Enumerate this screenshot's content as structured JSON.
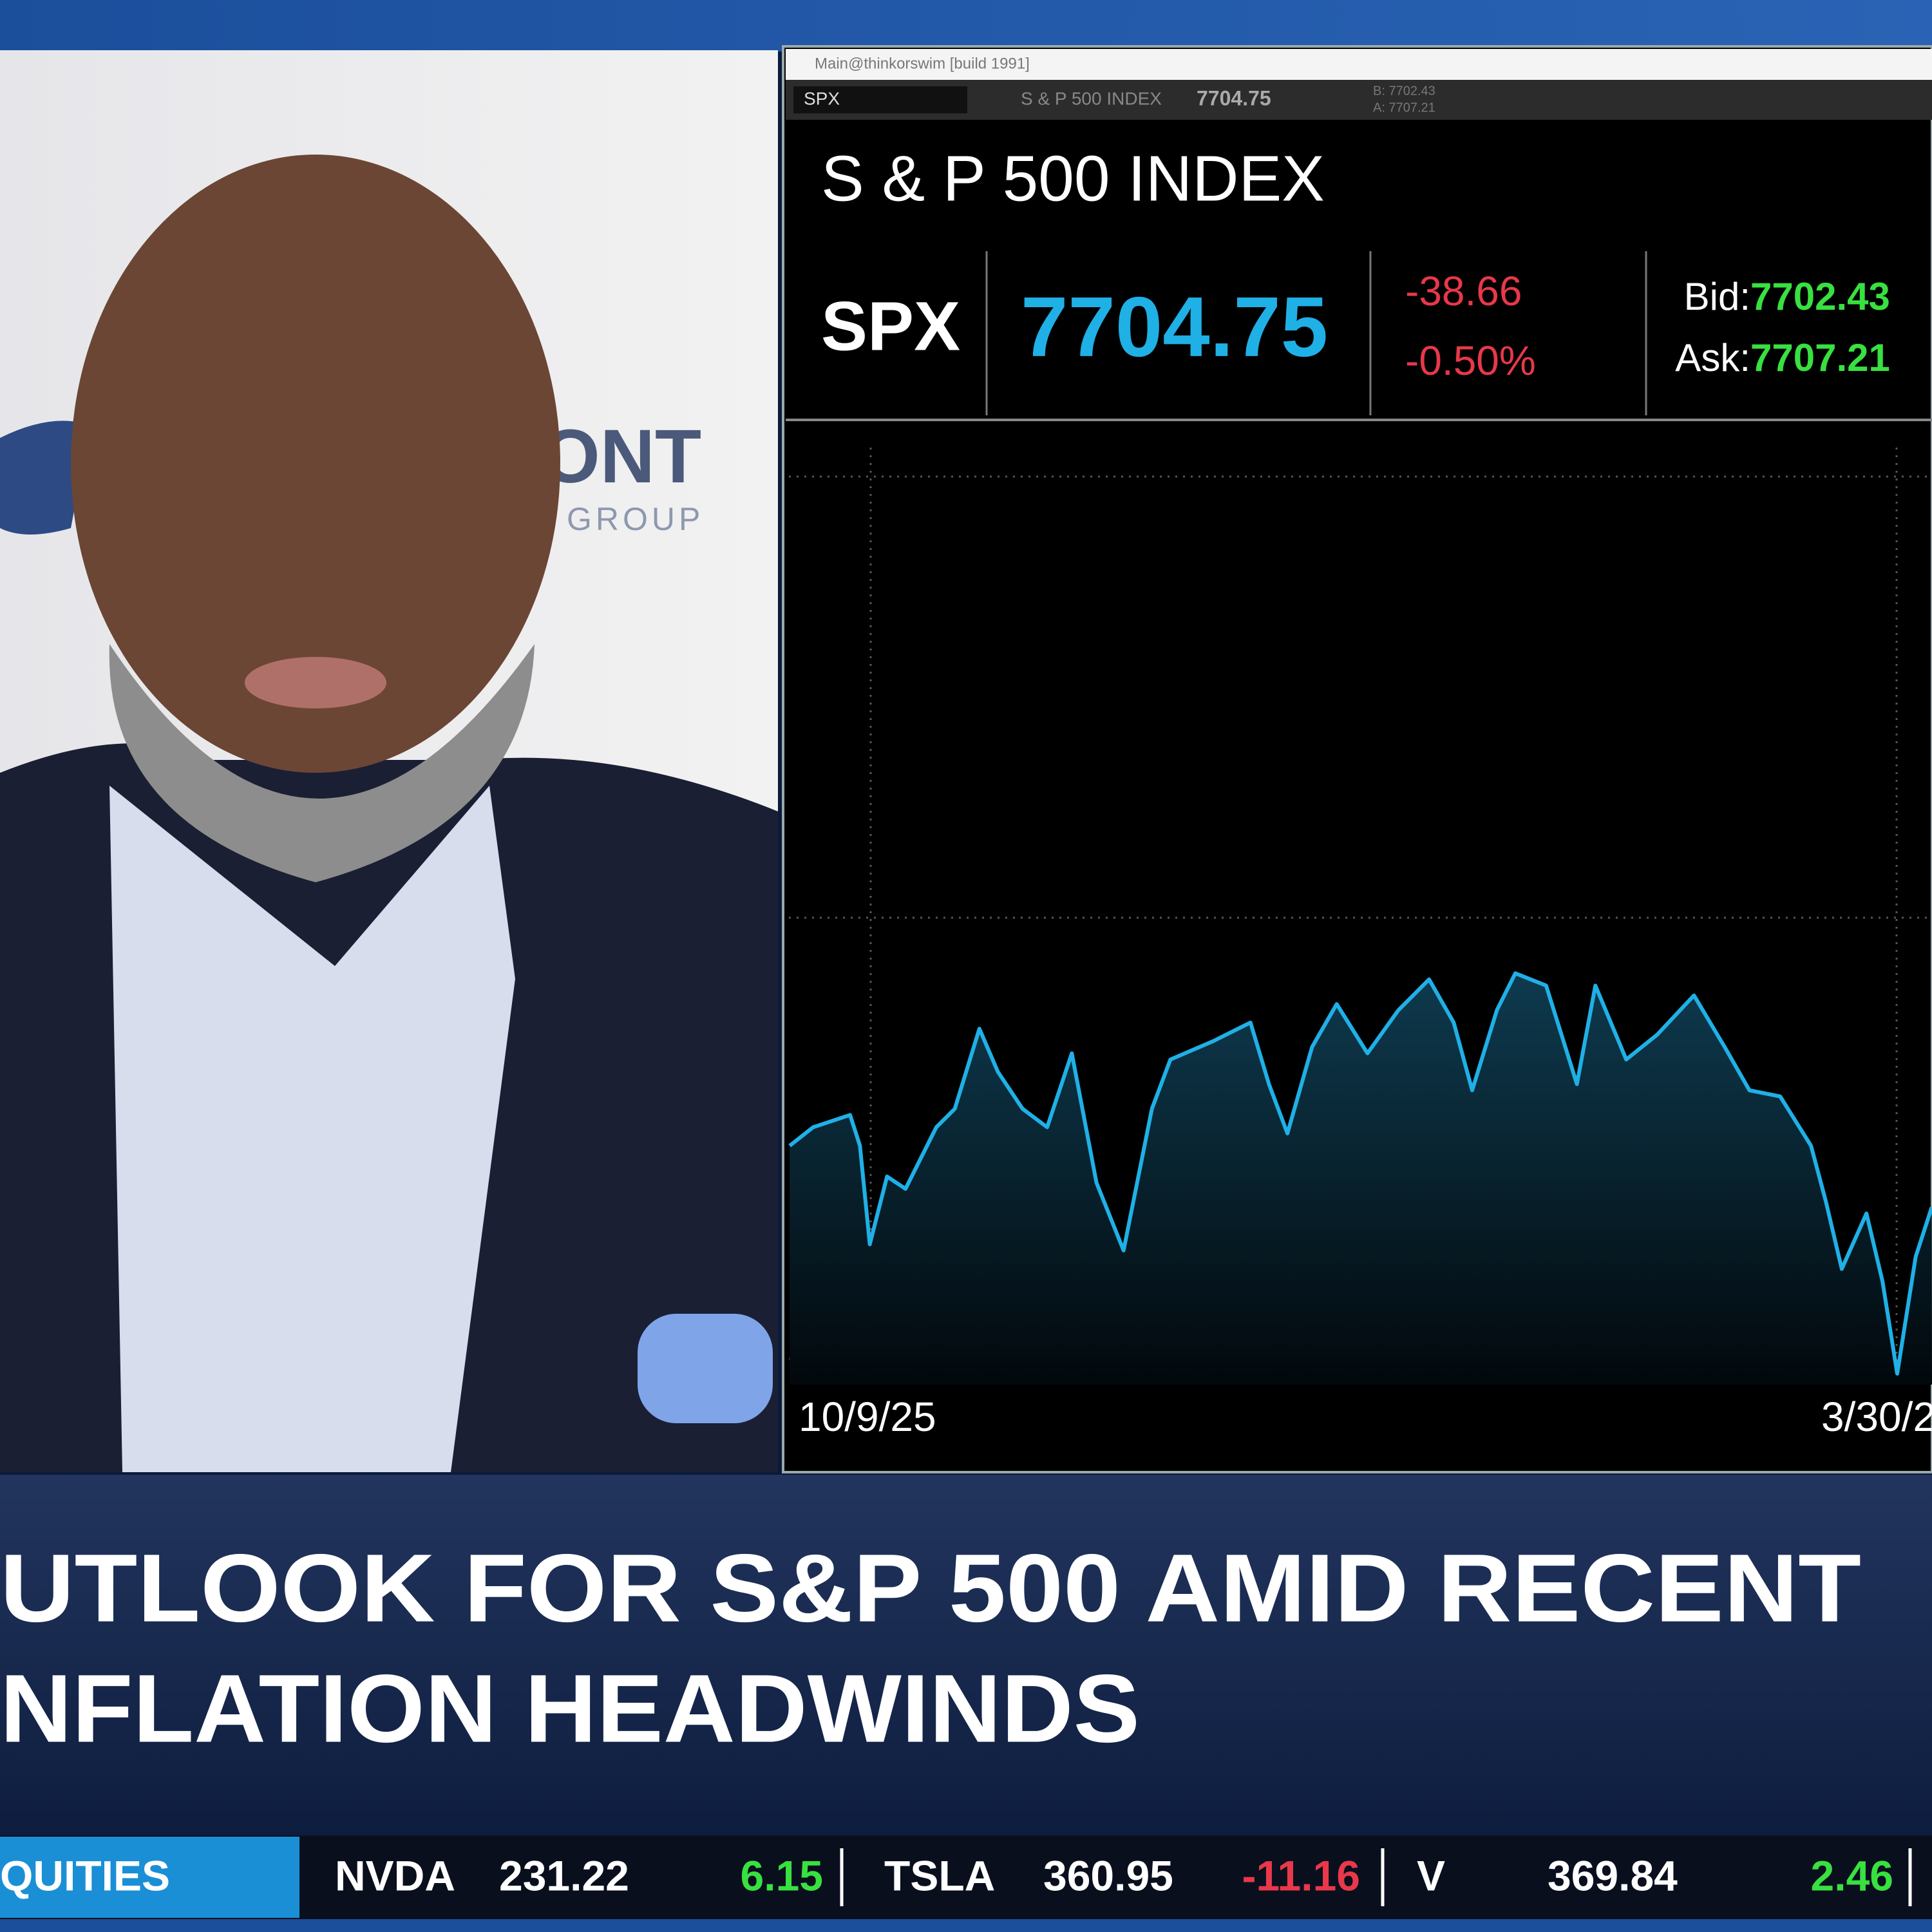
{
  "window": {
    "title": "Main@thinkorswim [build 1991]",
    "toolbar": {
      "symbol": "SPX",
      "name": "S & P 500 INDEX",
      "last": "7704.75",
      "bid": "B: 7702.43",
      "ask": "A: 7707.21"
    }
  },
  "background_logo": {
    "name": "ONT",
    "tagline": "GROUP"
  },
  "quote": {
    "name": "S & P 500 INDEX",
    "symbol": "SPX",
    "last": "7704.75",
    "change": "-38.66",
    "percent": "-0.50%",
    "bid_label": "Bid:",
    "bid": "7702.43",
    "ask_label": "Ask:",
    "ask": "7707.21"
  },
  "chart": {
    "x_labels": [
      "10/9/25",
      "3/30/2"
    ]
  },
  "headline": {
    "lines": [
      "UTLOOK FOR S&P 500 AMID RECENT",
      "NFLATION HEADWINDS"
    ]
  },
  "ticker": {
    "section": "QUITIES",
    "items": [
      {
        "symbol": "NVDA",
        "price": "231.22",
        "change": "6.15"
      },
      {
        "symbol": "TSLA",
        "price": "360.95",
        "change": "-11.16"
      },
      {
        "symbol": "V",
        "price": "369.84",
        "change": "2.46"
      }
    ]
  }
}
